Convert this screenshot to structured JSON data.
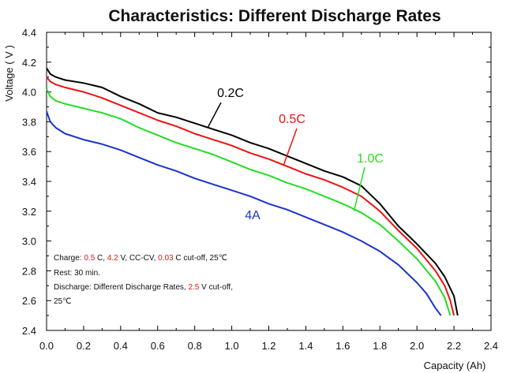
{
  "chart_data": {
    "type": "line",
    "title": "Characteristics: Different Discharge Rates",
    "xlabel": "Capacity (Ah)",
    "ylabel": "Voltage ( V )",
    "xlim": [
      0.0,
      2.4
    ],
    "ylim": [
      2.4,
      4.4
    ],
    "x_ticks": [
      "0.0",
      "0.2",
      "0.4",
      "0.6",
      "0.8",
      "1.0",
      "1.2",
      "1.4",
      "1.6",
      "1.8",
      "2.0",
      "2.2",
      "2.4"
    ],
    "y_ticks": [
      "2.4",
      "2.6",
      "2.8",
      "3.0",
      "3.2",
      "3.4",
      "3.6",
      "3.8",
      "4.0",
      "4.2",
      "4.4"
    ],
    "grid": false,
    "series": [
      {
        "name": "0.2C",
        "color": "#000000",
        "points": [
          [
            0.0,
            4.16
          ],
          [
            0.02,
            4.12
          ],
          [
            0.05,
            4.1
          ],
          [
            0.1,
            4.08
          ],
          [
            0.2,
            4.06
          ],
          [
            0.3,
            4.03
          ],
          [
            0.4,
            3.97
          ],
          [
            0.5,
            3.92
          ],
          [
            0.6,
            3.86
          ],
          [
            0.7,
            3.83
          ],
          [
            0.8,
            3.79
          ],
          [
            0.9,
            3.75
          ],
          [
            1.0,
            3.71
          ],
          [
            1.1,
            3.66
          ],
          [
            1.2,
            3.62
          ],
          [
            1.3,
            3.57
          ],
          [
            1.4,
            3.52
          ],
          [
            1.5,
            3.47
          ],
          [
            1.6,
            3.43
          ],
          [
            1.7,
            3.37
          ],
          [
            1.8,
            3.25
          ],
          [
            1.9,
            3.1
          ],
          [
            2.0,
            2.98
          ],
          [
            2.1,
            2.85
          ],
          [
            2.15,
            2.76
          ],
          [
            2.2,
            2.63
          ],
          [
            2.22,
            2.5
          ]
        ]
      },
      {
        "name": "0.5C",
        "color": "#ee1111",
        "points": [
          [
            0.0,
            4.1
          ],
          [
            0.02,
            4.07
          ],
          [
            0.05,
            4.05
          ],
          [
            0.1,
            4.03
          ],
          [
            0.2,
            4.0
          ],
          [
            0.3,
            3.96
          ],
          [
            0.4,
            3.91
          ],
          [
            0.5,
            3.86
          ],
          [
            0.6,
            3.81
          ],
          [
            0.7,
            3.77
          ],
          [
            0.8,
            3.72
          ],
          [
            0.9,
            3.68
          ],
          [
            1.0,
            3.64
          ],
          [
            1.1,
            3.59
          ],
          [
            1.2,
            3.55
          ],
          [
            1.3,
            3.5
          ],
          [
            1.4,
            3.45
          ],
          [
            1.5,
            3.41
          ],
          [
            1.6,
            3.36
          ],
          [
            1.7,
            3.3
          ],
          [
            1.8,
            3.2
          ],
          [
            1.9,
            3.07
          ],
          [
            2.0,
            2.95
          ],
          [
            2.1,
            2.8
          ],
          [
            2.15,
            2.7
          ],
          [
            2.18,
            2.6
          ],
          [
            2.2,
            2.5
          ]
        ]
      },
      {
        "name": "1.0C",
        "color": "#22dd22",
        "points": [
          [
            0.0,
            4.02
          ],
          [
            0.02,
            3.97
          ],
          [
            0.05,
            3.94
          ],
          [
            0.1,
            3.92
          ],
          [
            0.2,
            3.89
          ],
          [
            0.3,
            3.86
          ],
          [
            0.4,
            3.82
          ],
          [
            0.5,
            3.76
          ],
          [
            0.6,
            3.71
          ],
          [
            0.7,
            3.66
          ],
          [
            0.8,
            3.62
          ],
          [
            0.9,
            3.58
          ],
          [
            1.0,
            3.53
          ],
          [
            1.1,
            3.48
          ],
          [
            1.2,
            3.44
          ],
          [
            1.3,
            3.39
          ],
          [
            1.4,
            3.35
          ],
          [
            1.5,
            3.3
          ],
          [
            1.6,
            3.25
          ],
          [
            1.7,
            3.19
          ],
          [
            1.8,
            3.11
          ],
          [
            1.9,
            3.0
          ],
          [
            2.0,
            2.88
          ],
          [
            2.1,
            2.73
          ],
          [
            2.15,
            2.62
          ],
          [
            2.18,
            2.5
          ]
        ]
      },
      {
        "name": "4A",
        "color": "#1a33cc",
        "points": [
          [
            0.0,
            3.87
          ],
          [
            0.02,
            3.8
          ],
          [
            0.05,
            3.76
          ],
          [
            0.1,
            3.72
          ],
          [
            0.2,
            3.68
          ],
          [
            0.3,
            3.65
          ],
          [
            0.4,
            3.61
          ],
          [
            0.5,
            3.56
          ],
          [
            0.6,
            3.51
          ],
          [
            0.7,
            3.47
          ],
          [
            0.8,
            3.42
          ],
          [
            0.9,
            3.38
          ],
          [
            1.0,
            3.34
          ],
          [
            1.1,
            3.3
          ],
          [
            1.2,
            3.25
          ],
          [
            1.3,
            3.21
          ],
          [
            1.4,
            3.16
          ],
          [
            1.5,
            3.11
          ],
          [
            1.6,
            3.06
          ],
          [
            1.7,
            3.0
          ],
          [
            1.8,
            2.93
          ],
          [
            1.9,
            2.84
          ],
          [
            2.0,
            2.72
          ],
          [
            2.05,
            2.65
          ],
          [
            2.1,
            2.55
          ],
          [
            2.13,
            2.5
          ]
        ]
      }
    ],
    "annotations": {
      "charge_line": [
        {
          "text": "Charge: ",
          "color": "#111111"
        },
        {
          "text": "0.5",
          "color": "#ee1111"
        },
        {
          "text": " C, ",
          "color": "#111111"
        },
        {
          "text": "4.2",
          "color": "#ee1111"
        },
        {
          "text": " V, CC-CV, ",
          "color": "#111111"
        },
        {
          "text": "0.03",
          "color": "#ee1111"
        },
        {
          "text": " C cut-off, 25℃",
          "color": "#111111"
        }
      ],
      "rest_line": "Rest: 30  min.",
      "discharge_line": [
        {
          "text": "Discharge: Different Discharge Rates, ",
          "color": "#111111"
        },
        {
          "text": "2.5",
          "color": "#ee1111"
        },
        {
          "text": " V cut-off,",
          "color": "#111111"
        }
      ],
      "temp_line": "25℃"
    }
  }
}
